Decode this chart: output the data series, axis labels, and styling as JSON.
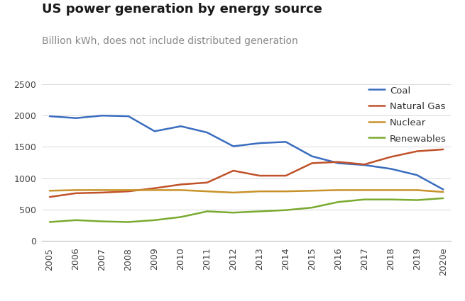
{
  "title": "US power generation by energy source",
  "subtitle": "Billion kWh, does not include distributed generation",
  "years": [
    "2005",
    "2006",
    "2007",
    "2008",
    "2009",
    "2010",
    "2011",
    "2012",
    "2013",
    "2014",
    "2015",
    "2016",
    "2017",
    "2018",
    "2019",
    "2020e"
  ],
  "x_numeric": [
    0,
    1,
    2,
    3,
    4,
    5,
    6,
    7,
    8,
    9,
    10,
    11,
    12,
    13,
    14,
    15
  ],
  "coal": [
    1990,
    1960,
    2000,
    1990,
    1750,
    1830,
    1730,
    1510,
    1560,
    1580,
    1350,
    1240,
    1210,
    1150,
    1050,
    820
  ],
  "natural_gas": [
    700,
    760,
    770,
    790,
    840,
    900,
    930,
    1120,
    1040,
    1040,
    1240,
    1260,
    1220,
    1340,
    1430,
    1460
  ],
  "nuclear": [
    800,
    810,
    810,
    810,
    810,
    810,
    790,
    770,
    790,
    790,
    800,
    810,
    810,
    810,
    810,
    780
  ],
  "renewables": [
    300,
    330,
    310,
    300,
    330,
    380,
    470,
    450,
    470,
    490,
    530,
    620,
    660,
    660,
    650,
    680
  ],
  "coal_color": "#3a6dbf",
  "natural_gas_color": "#c0522a",
  "nuclear_color": "#c8922a",
  "renewables_color": "#7aaa30",
  "ylim": [
    0,
    2500
  ],
  "yticks": [
    0,
    500,
    1000,
    1500,
    2000,
    2500
  ],
  "background_color": "#ffffff",
  "legend_labels": [
    "Coal",
    "Natural Gas",
    "Nuclear",
    "Renewables"
  ],
  "title_fontsize": 13,
  "subtitle_fontsize": 10,
  "tick_fontsize": 9,
  "line_width": 1.8
}
